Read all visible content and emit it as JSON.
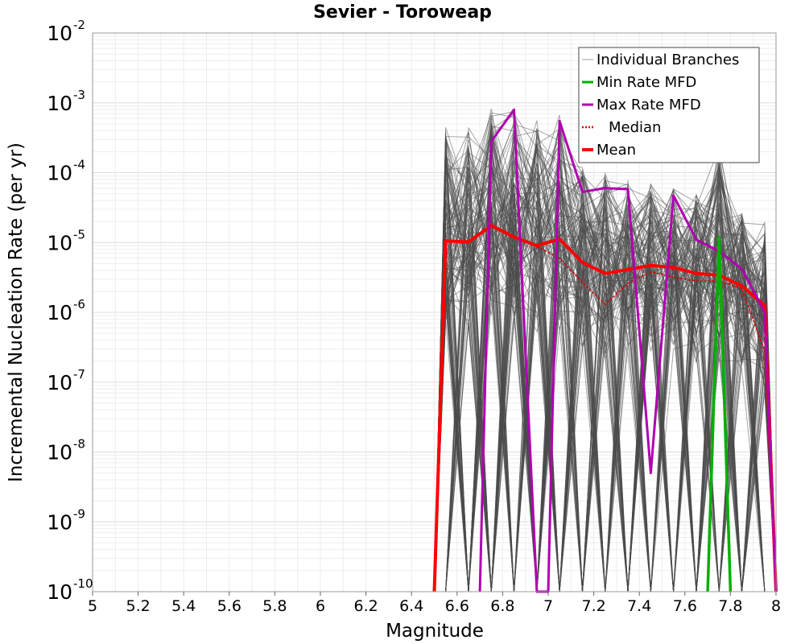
{
  "chart_data": {
    "type": "line",
    "title": "Sevier - Toroweap",
    "xlabel": "Magnitude",
    "ylabel": "Incremental Nucleation Rate (per yr)",
    "xlim": [
      5,
      8
    ],
    "ylim_log10": [
      -10,
      -2
    ],
    "yscale": "log",
    "grid": true,
    "x_ticks": [
      "5",
      "5.2",
      "5.4",
      "5.6",
      "5.8",
      "6",
      "6.2",
      "6.4",
      "6.6",
      "6.8",
      "7",
      "7.2",
      "7.4",
      "7.6",
      "7.8",
      "8"
    ],
    "y_ticks": [
      {
        "base": "10",
        "exp": "-2"
      },
      {
        "base": "10",
        "exp": "-3"
      },
      {
        "base": "10",
        "exp": "-4"
      },
      {
        "base": "10",
        "exp": "-5"
      },
      {
        "base": "10",
        "exp": "-6"
      },
      {
        "base": "10",
        "exp": "-7"
      },
      {
        "base": "10",
        "exp": "-8"
      },
      {
        "base": "10",
        "exp": "-9"
      },
      {
        "base": "10",
        "exp": "-10"
      }
    ],
    "legend": {
      "placement": "top-right",
      "entries": [
        {
          "label": "Individual Branches",
          "color": "#a0a0a0",
          "style": "thin"
        },
        {
          "label": "Min Rate MFD",
          "color": "#00b000",
          "style": "solid"
        },
        {
          "label": "Max Rate MFD",
          "color": "#b000b0",
          "style": "solid"
        },
        {
          "label": "Median",
          "color": "#e00000",
          "style": "dotted"
        },
        {
          "label": "Mean",
          "color": "#ff0000",
          "style": "thick"
        }
      ]
    },
    "x_bins": [
      6.55,
      6.65,
      6.75,
      6.85,
      6.95,
      7.05,
      7.15,
      7.25,
      7.35,
      7.45,
      7.55,
      7.65,
      7.75,
      7.85,
      7.95
    ],
    "branch_envelope": {
      "name": "Individual Branches",
      "upper": [
        0.0005,
        0.00045,
        0.00085,
        0.0009,
        0.00065,
        0.0007,
        0.00012,
        0.0001,
        8e-05,
        7e-05,
        6e-05,
        5e-05,
        0.00025,
        3e-05,
        2e-05
      ],
      "typical": [
        1e-05,
        1e-05,
        1.7e-05,
        1.2e-05,
        9e-06,
        1.1e-05,
        5e-06,
        3.5e-06,
        4e-06,
        4.5e-06,
        4e-06,
        3.5e-06,
        3.3e-06,
        2.5e-06,
        1.2e-06
      ],
      "lower_floor": 1e-10
    },
    "series": [
      {
        "name": "Mean",
        "color": "#ff0000",
        "x": [
          6.5,
          6.55,
          6.65,
          6.75,
          6.85,
          6.95,
          7.05,
          7.15,
          7.25,
          7.35,
          7.45,
          7.55,
          7.65,
          7.75,
          7.85,
          7.95,
          8.0
        ],
        "y": [
          1e-10,
          1.05e-05,
          1.02e-05,
          1.75e-05,
          1.2e-05,
          9e-06,
          1.12e-05,
          5.2e-06,
          3.6e-06,
          4.1e-06,
          4.7e-06,
          4.4e-06,
          3.6e-06,
          3.4e-06,
          2.4e-06,
          1.25e-06,
          1e-10
        ]
      },
      {
        "name": "Median",
        "color": "#e00000",
        "x": [
          6.5,
          6.55,
          6.65,
          6.75,
          6.85,
          6.95,
          7.05,
          7.15,
          7.25,
          7.35,
          7.45,
          7.55,
          7.65,
          7.75,
          7.85,
          7.95,
          8.0
        ],
        "y": [
          1e-10,
          1.02e-05,
          1e-05,
          1.7e-05,
          1.15e-05,
          8.8e-06,
          6e-06,
          2.7e-06,
          1.3e-06,
          2.6e-06,
          3.8e-06,
          3.2e-06,
          2.8e-06,
          2.8e-06,
          2.2e-06,
          2.8e-07,
          1e-10
        ]
      },
      {
        "name": "Max Rate MFD",
        "color": "#b000b0",
        "x": [
          6.7,
          6.75,
          6.85,
          6.95,
          7.0,
          7.05,
          7.15,
          7.25,
          7.35,
          7.45,
          7.55,
          7.65,
          7.75,
          7.85,
          7.95,
          8.0
        ],
        "y": [
          1e-10,
          0.00028,
          0.0008,
          1e-10,
          1e-10,
          0.00055,
          5.3e-05,
          6e-05,
          5.8e-05,
          5e-09,
          4.7e-05,
          1.1e-05,
          7.5e-06,
          4.2e-06,
          1e-06,
          1e-10
        ]
      },
      {
        "name": "Min Rate MFD",
        "color": "#00b000",
        "x": [
          7.7,
          7.75,
          7.8
        ],
        "y": [
          1e-10,
          1.2e-05,
          1e-10
        ]
      }
    ]
  }
}
